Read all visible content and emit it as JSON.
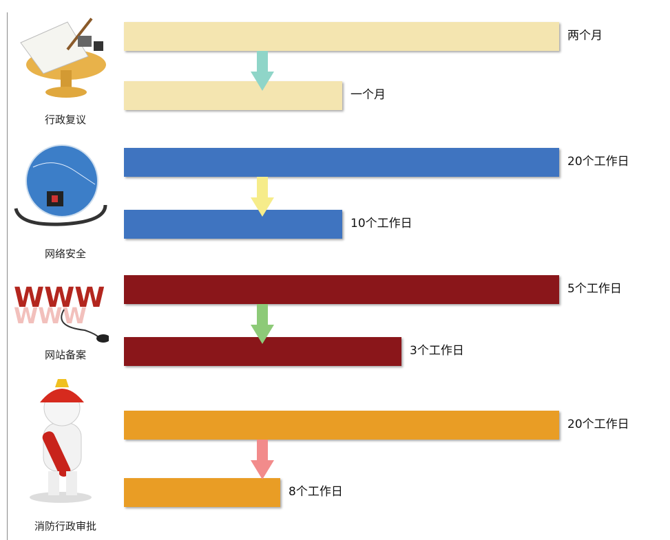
{
  "groups": [
    {
      "name": "行政复议",
      "before": "两个月",
      "after": "一个月",
      "color": "#f4e5b0",
      "arrow_color": "#8fd5c8"
    },
    {
      "name": "网络安全",
      "before": "20个工作日",
      "after": "10个工作日",
      "color": "#3f74c0",
      "arrow_color": "#f6ec8a"
    },
    {
      "name": "网站备案",
      "before": "5个工作日",
      "after": "3个工作日",
      "color": "#8a161a",
      "arrow_color": "#8dca78"
    },
    {
      "name": "消防行政审批",
      "before": "20个工作日",
      "after": "8个工作日",
      "color": "#e99d25",
      "arrow_color": "#f28b8b"
    }
  ]
}
